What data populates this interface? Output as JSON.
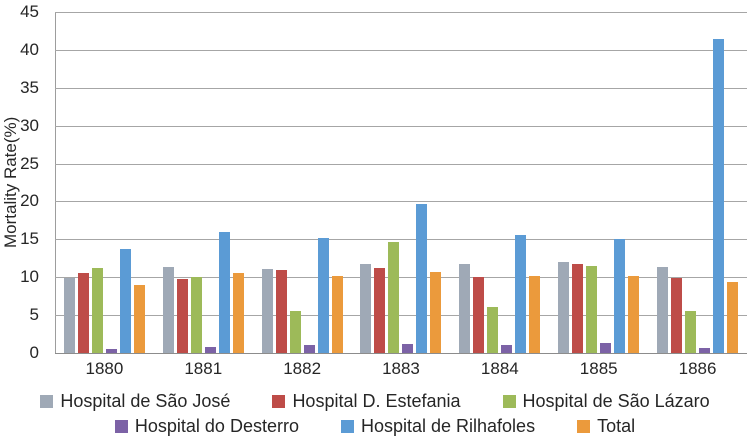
{
  "chart_data": {
    "type": "bar",
    "title": "",
    "xlabel": "",
    "ylabel": "Mortality Rate(%)",
    "ylim": [
      0,
      45
    ],
    "y_ticks": [
      0,
      5,
      10,
      15,
      20,
      25,
      30,
      35,
      40,
      45
    ],
    "grid": true,
    "legend_position": "bottom",
    "categories": [
      "1880",
      "1881",
      "1882",
      "1883",
      "1884",
      "1885",
      "1886"
    ],
    "series": [
      {
        "name": "Hospital de São José",
        "color": "#9FA9B6",
        "values": [
          9.9,
          11.4,
          11.1,
          11.8,
          11.7,
          12.0,
          11.3
        ]
      },
      {
        "name": "Hospital D. Estefania",
        "color": "#BE4C48",
        "values": [
          10.6,
          9.7,
          11.0,
          11.2,
          10.0,
          11.7,
          9.9
        ]
      },
      {
        "name": "Hospital de São Lázaro",
        "color": "#9DBA59",
        "values": [
          11.2,
          10.0,
          5.6,
          14.7,
          6.1,
          11.5,
          5.6
        ]
      },
      {
        "name": "Hospital do Desterro",
        "color": "#7C62A6",
        "values": [
          0.5,
          0.8,
          1.0,
          1.2,
          1.1,
          1.3,
          0.6
        ]
      },
      {
        "name": "Hospital de Rilhafoles",
        "color": "#5B9BD5",
        "values": [
          13.7,
          16.0,
          15.2,
          19.7,
          15.6,
          15.1,
          41.5
        ]
      },
      {
        "name": "Total",
        "color": "#EB9A3C",
        "values": [
          9.0,
          10.6,
          10.1,
          10.7,
          10.1,
          10.2,
          9.4
        ]
      }
    ],
    "legend_rows": [
      [
        0,
        1,
        2
      ],
      [
        3,
        4,
        5
      ]
    ]
  }
}
